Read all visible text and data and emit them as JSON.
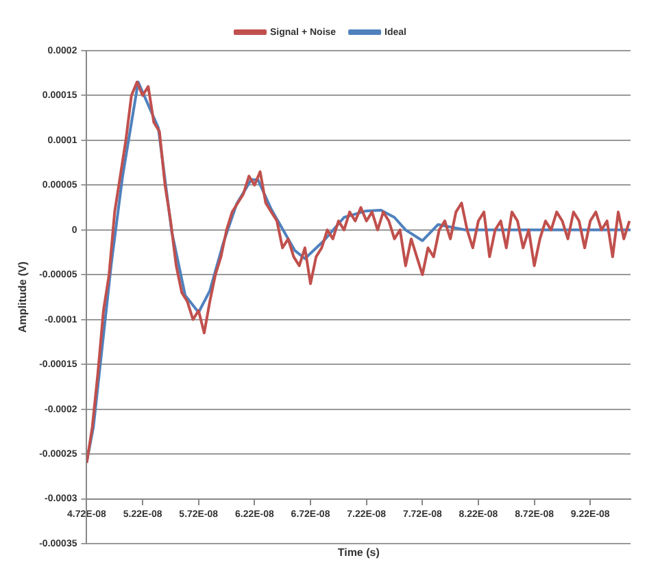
{
  "chart_data": {
    "type": "line",
    "xlabel": "Time (s)",
    "ylabel": "Amplitude (V)",
    "legend": "top",
    "grid": "y",
    "xlim": [
      4.72e-08,
      9.58e-08
    ],
    "xticks": [
      {
        "value": 4.72e-08,
        "label": "4.72E-08"
      },
      {
        "value": 5.22e-08,
        "label": "5.22E-08"
      },
      {
        "value": 5.72e-08,
        "label": "5.72E-08"
      },
      {
        "value": 6.22e-08,
        "label": "6.22E-08"
      },
      {
        "value": 6.72e-08,
        "label": "6.72E-08"
      },
      {
        "value": 7.22e-08,
        "label": "7.22E-08"
      },
      {
        "value": 7.72e-08,
        "label": "7.72E-08"
      },
      {
        "value": 8.22e-08,
        "label": "8.22E-08"
      },
      {
        "value": 8.72e-08,
        "label": "8.72E-08"
      },
      {
        "value": 9.22e-08,
        "label": "9.22E-08"
      }
    ],
    "ylim": [
      -0.00035,
      0.0002
    ],
    "yticks": [
      -0.00035,
      -0.0003,
      -0.00025,
      -0.0002,
      -0.00015,
      -0.0001,
      {
        "value": -5e-05,
        "label": "-0.00005"
      },
      0,
      {
        "value": 5e-05,
        "label": "0.00005"
      },
      0.0001,
      0.00015,
      0.0002
    ],
    "series": [
      {
        "name": "Signal + Noise",
        "color": "#c0504d",
        "x": [
          4.72e-08,
          4.77e-08,
          4.82e-08,
          4.87e-08,
          4.92e-08,
          4.97e-08,
          5.02e-08,
          5.07e-08,
          5.12e-08,
          5.17e-08,
          5.22e-08,
          5.27e-08,
          5.32e-08,
          5.37e-08,
          5.42e-08,
          5.47e-08,
          5.52e-08,
          5.57e-08,
          5.62e-08,
          5.67e-08,
          5.72e-08,
          5.77e-08,
          5.82e-08,
          5.87e-08,
          5.92e-08,
          5.97e-08,
          6.02e-08,
          6.07e-08,
          6.12e-08,
          6.17e-08,
          6.22e-08,
          6.27e-08,
          6.32e-08,
          6.37e-08,
          6.42e-08,
          6.47e-08,
          6.52e-08,
          6.57e-08,
          6.62e-08,
          6.67e-08,
          6.72e-08,
          6.77e-08,
          6.82e-08,
          6.87e-08,
          6.92e-08,
          6.97e-08,
          7.02e-08,
          7.07e-08,
          7.12e-08,
          7.17e-08,
          7.22e-08,
          7.27e-08,
          7.32e-08,
          7.37e-08,
          7.42e-08,
          7.47e-08,
          7.52e-08,
          7.57e-08,
          7.62e-08,
          7.67e-08,
          7.72e-08,
          7.77e-08,
          7.82e-08,
          7.87e-08,
          7.92e-08,
          7.97e-08,
          8.02e-08,
          8.07e-08,
          8.12e-08,
          8.17e-08,
          8.22e-08,
          8.27e-08,
          8.32e-08,
          8.37e-08,
          8.42e-08,
          8.47e-08,
          8.52e-08,
          8.57e-08,
          8.62e-08,
          8.67e-08,
          8.72e-08,
          8.77e-08,
          8.82e-08,
          8.87e-08,
          8.92e-08,
          8.97e-08,
          9.02e-08,
          9.07e-08,
          9.12e-08,
          9.17e-08,
          9.22e-08,
          9.27e-08,
          9.32e-08,
          9.37e-08,
          9.42e-08,
          9.47e-08,
          9.52e-08,
          9.57e-08
        ],
        "values": [
          -0.00026,
          -0.00022,
          -0.00016,
          -9e-05,
          -5e-05,
          2e-05,
          6e-05,
          0.0001,
          0.00015,
          0.000165,
          0.00015,
          0.00016,
          0.00012,
          0.00011,
          5e-05,
          1e-05,
          -4e-05,
          -7e-05,
          -8e-05,
          -0.0001,
          -9e-05,
          -0.000115,
          -8e-05,
          -5e-05,
          -3e-05,
          0,
          2e-05,
          3e-05,
          4e-05,
          6e-05,
          5e-05,
          6.5e-05,
          3e-05,
          2e-05,
          1e-05,
          -2e-05,
          -1e-05,
          -3e-05,
          -4e-05,
          -2e-05,
          -6e-05,
          -3e-05,
          -2e-05,
          0,
          -1e-05,
          1e-05,
          0,
          2e-05,
          1e-05,
          2.5e-05,
          1e-05,
          2e-05,
          0,
          2e-05,
          1e-05,
          -1e-05,
          0,
          -4e-05,
          -1e-05,
          -3e-05,
          -5e-05,
          -2e-05,
          -3e-05,
          0,
          1e-05,
          -1e-05,
          2e-05,
          3e-05,
          0,
          -2e-05,
          1e-05,
          2e-05,
          -3e-05,
          0,
          1e-05,
          -2e-05,
          2e-05,
          1e-05,
          -2e-05,
          0,
          -4e-05,
          -1e-05,
          1e-05,
          0,
          2e-05,
          1e-05,
          -1e-05,
          2e-05,
          1e-05,
          -2e-05,
          1e-05,
          2e-05,
          0,
          1e-05,
          -3e-05,
          2e-05,
          -1e-05,
          1e-05
        ]
      },
      {
        "name": "Ideal",
        "color": "#4f81bd",
        "x": [
          4.72e-08,
          4.78e-08,
          4.94e-08,
          5.04e-08,
          5.18e-08,
          5.36e-08,
          5.48e-08,
          5.6e-08,
          5.72e-08,
          5.82e-08,
          5.94e-08,
          6.06e-08,
          6.19e-08,
          6.25e-08,
          6.37e-08,
          6.58e-08,
          6.67e-08,
          6.84e-08,
          7.02e-08,
          7.21e-08,
          7.35e-08,
          7.47e-08,
          7.57e-08,
          7.72e-08,
          7.86e-08,
          8.1e-08,
          8.74e-08,
          9.58e-08
        ],
        "values": [
          -0.000259,
          -0.00022,
          -3.8e-05,
          5.9e-05,
          0.000165,
          0.000114,
          -2e-06,
          -7.3e-05,
          -9.2e-05,
          -6.8e-05,
          -1.5e-05,
          2.9e-05,
          5.6e-05,
          5.6e-05,
          2.3e-05,
          -2.3e-05,
          -3.2e-05,
          -1.2e-05,
          1.4e-05,
          2.1e-05,
          2.2e-05,
          1.4e-05,
          0,
          -1.2e-05,
          6e-06,
          0,
          0,
          0
        ]
      }
    ]
  }
}
